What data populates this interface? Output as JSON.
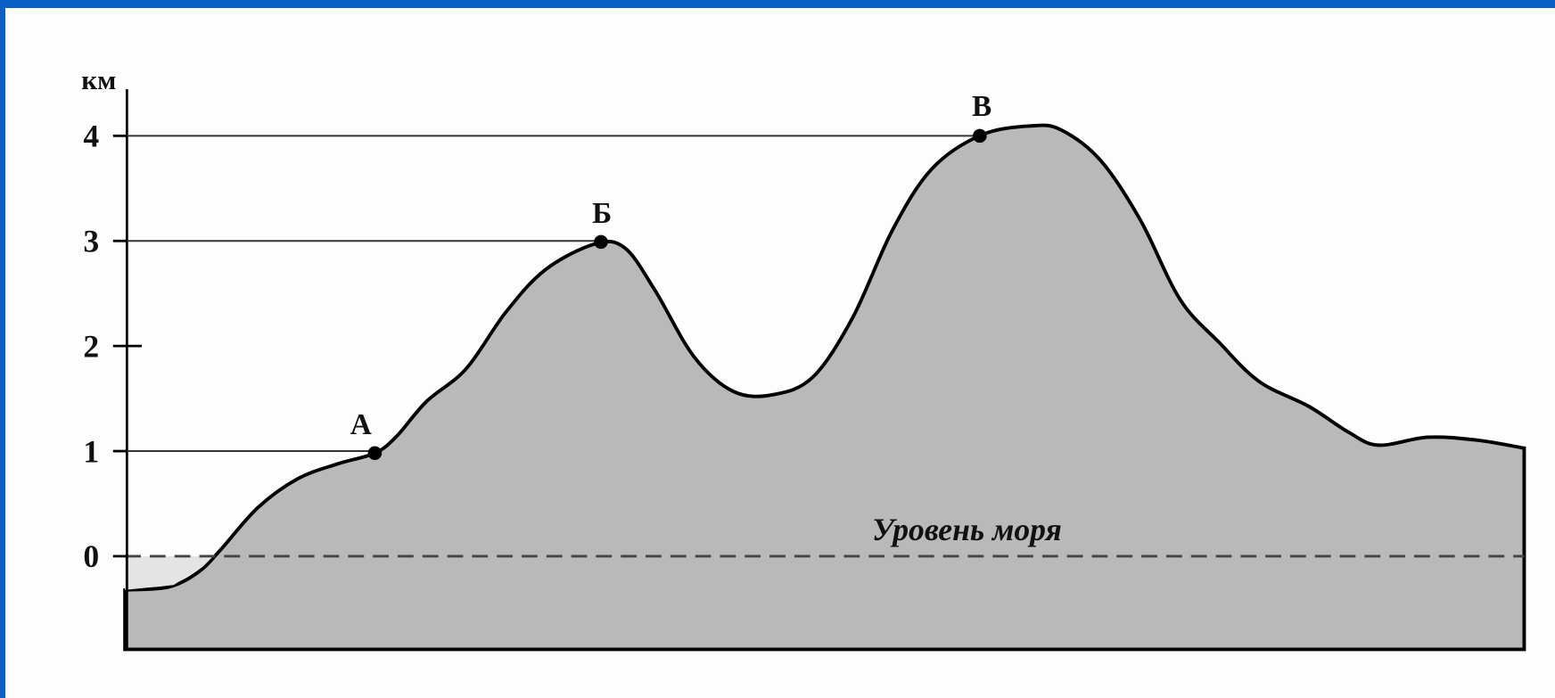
{
  "axis": {
    "unit": "км",
    "ticks": [
      "4",
      "3",
      "2",
      "1",
      "0"
    ]
  },
  "points": [
    {
      "label": "А"
    },
    {
      "label": "Б"
    },
    {
      "label": "В"
    }
  ],
  "sea_level_label": "Уровень моря"
}
